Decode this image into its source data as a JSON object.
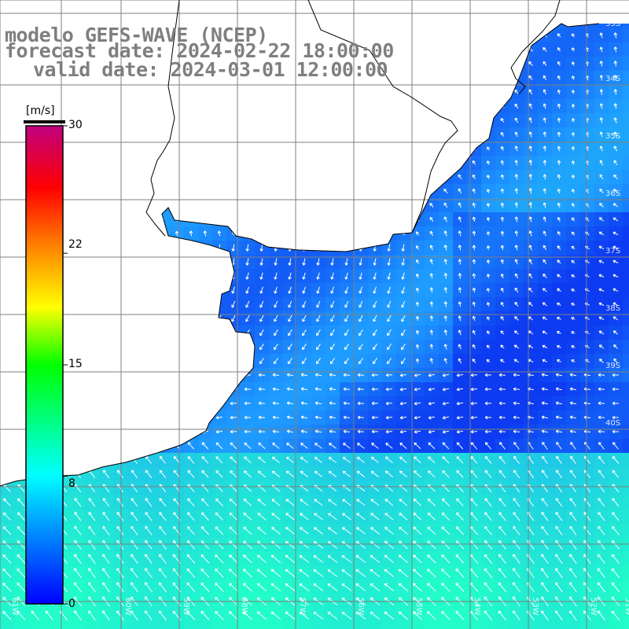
{
  "title": {
    "line1": "modelo GEFS-WAVE (NCEP)",
    "line2": "forecast date: 2024-02-22 18:00:00",
    "line3": "valid date: 2024-03-01 12:00:00"
  },
  "colorbar": {
    "unit": "[m/s]",
    "ticks": [
      "30",
      "22",
      "15",
      "8",
      "0"
    ],
    "tick_values": [
      30,
      22,
      15,
      8,
      0
    ],
    "min": 0,
    "max": 30
  },
  "grid": {
    "lat_labels": [
      "33S",
      "34S",
      "35S",
      "36S",
      "37S",
      "38S",
      "39S",
      "40S"
    ],
    "lon_labels": [
      "61W",
      "60W",
      "59W",
      "58W",
      "57W",
      "56W",
      "55W",
      "54W",
      "53W",
      "52W",
      "51W"
    ]
  },
  "colors": {
    "ocean_low": "#0a30f0",
    "ocean_mid": "#1e9cff",
    "ocean_high": "#22ffc8",
    "land": "#ffffff",
    "coast": "#000000",
    "grid": "#7f7f7f",
    "arrow": "#ffffff",
    "title": "#7f7f7f"
  }
}
